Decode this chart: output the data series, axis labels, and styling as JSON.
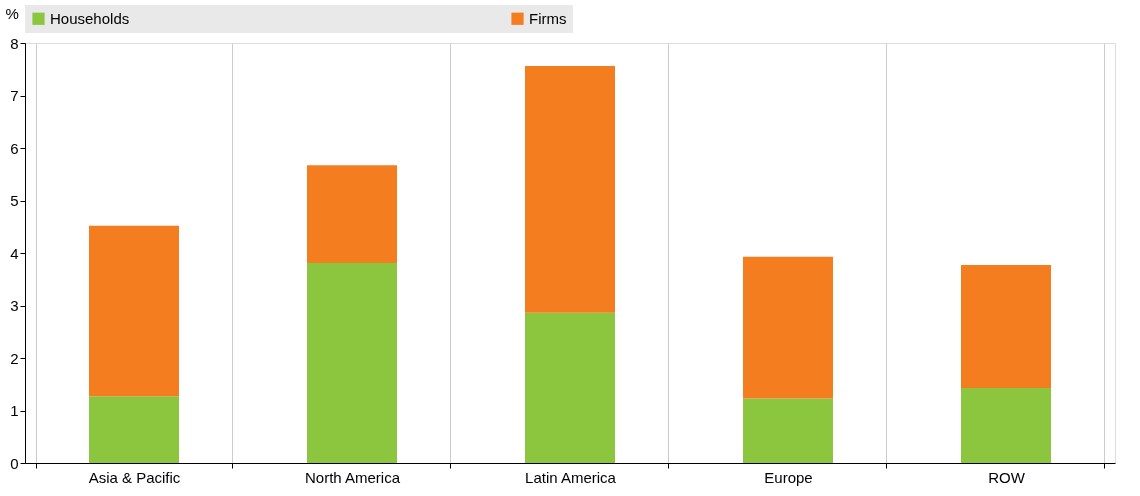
{
  "chart_data": {
    "type": "bar",
    "stacked": true,
    "ylabel": "%",
    "categories": [
      "Asia & Pacific",
      "North America",
      "Latin America",
      "Europe",
      "ROW"
    ],
    "series": [
      {
        "name": "Households",
        "color": "#8cc63f",
        "values": [
          1.27,
          3.81,
          2.86,
          1.23,
          1.43
        ]
      },
      {
        "name": "Firms",
        "color": "#f47d20",
        "values": [
          3.25,
          1.86,
          4.7,
          2.7,
          2.34
        ]
      }
    ],
    "ylim": [
      0,
      8
    ],
    "yticks": [
      0,
      1,
      2,
      3,
      4,
      5,
      6,
      7,
      8
    ],
    "grid": "x",
    "legend": "top"
  }
}
